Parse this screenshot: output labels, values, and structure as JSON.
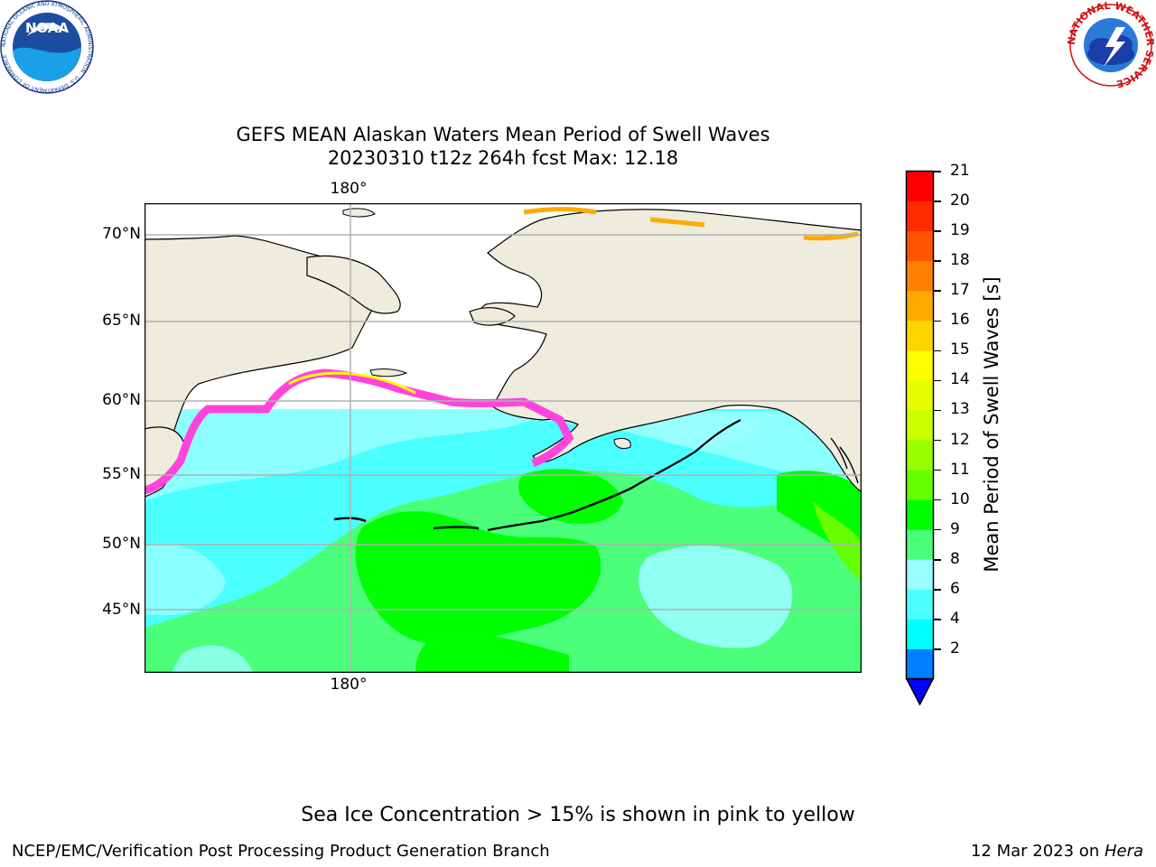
{
  "title_line1": "GEFS MEAN Alaskan Waters Mean Period of Swell Waves",
  "title_line2": "20230310 t12z 264h fcst   Max: 12.18",
  "lat_labels": [
    "70°N",
    "65°N",
    "60°N",
    "55°N",
    "50°N",
    "45°N"
  ],
  "lon_label_top": "180°",
  "lon_label_bottom": "180°",
  "colorbar": {
    "label": "Mean Period of Swell Waves [s]",
    "ticks": [
      "21",
      "20",
      "19",
      "18",
      "17",
      "16",
      "15",
      "14",
      "13",
      "12",
      "11",
      "10",
      "9",
      "8",
      "6",
      "4",
      "2"
    ],
    "colors": [
      "#ff0000",
      "#ff2a00",
      "#ff5500",
      "#ff8000",
      "#ffaa00",
      "#ffd500",
      "#ffff00",
      "#e6ff00",
      "#ccff00",
      "#99ff00",
      "#66ff00",
      "#00ff00",
      "#4cff7a",
      "#99ffff",
      "#4cffff",
      "#00ffff",
      "#0080ff"
    ],
    "under_color": "#0000ff"
  },
  "colors": {
    "land": "#eeecdc",
    "ocean_main": "#4cffff",
    "ocean_light": "#99ffff",
    "ocean_green": "#4cff7a",
    "ocean_bright_green": "#00ff00",
    "ice_pink": "#ff44dd",
    "ice_yellow": "#ffff00",
    "grid": "#b0b0b0"
  },
  "sea_ice_note": "Sea Ice Concentration > 15% is shown in pink to yellow",
  "footer_left": "NCEP/EMC/Verification Post Processing Product Generation Branch",
  "footer_date": "12 Mar 2023 on ",
  "footer_host": "Hera",
  "logos": {
    "noaa": "NOAA",
    "noaa_ring": "NATIONAL OCEANIC AND ATMOSPHERIC ADMINISTRATION · U.S. DEPARTMENT OF COMMERCE",
    "nws_ring": "NATIONAL WEATHER SERVICE"
  }
}
